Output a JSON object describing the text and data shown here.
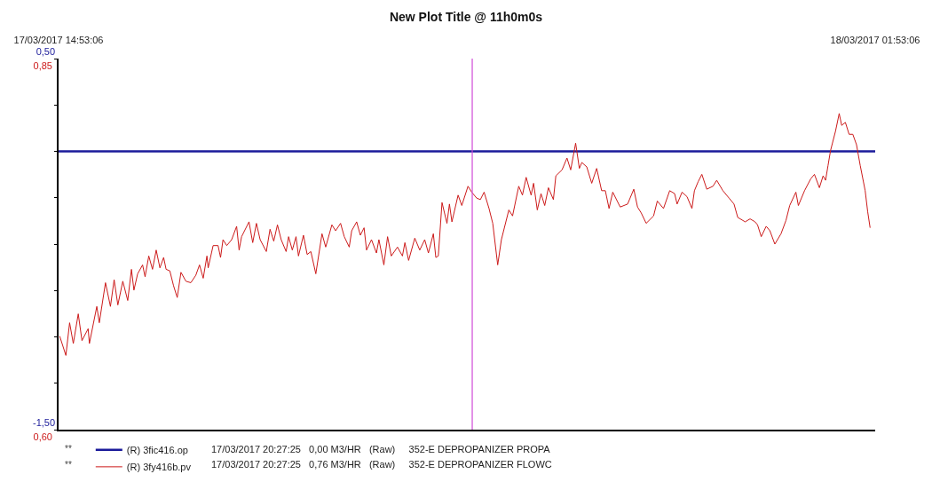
{
  "chart_data": {
    "type": "line",
    "title": "New Plot Title @ 11h0m0s",
    "xlim": [
      "2017-03-17T14:53:06",
      "2017-03-18T01:53:06"
    ],
    "xticks": [
      {
        "value": "2017-03-17T14:53:06",
        "label": "17/03/2017 14:53:06"
      },
      {
        "value": "2017-03-18T01:53:06",
        "label": "18/03/2017 01:53:06"
      }
    ],
    "ylim": [
      -1.5,
      0.5
    ],
    "yticks": [
      {
        "value": -1.5,
        "label": "-1,50"
      },
      {
        "value": -1.25,
        "label": null
      },
      {
        "value": -1.0,
        "label": null
      },
      {
        "value": -0.75,
        "label": null
      },
      {
        "value": -0.5,
        "label": null
      },
      {
        "value": -0.25,
        "label": null
      },
      {
        "value": 0.0,
        "label": null
      },
      {
        "value": 0.25,
        "label": null
      },
      {
        "value": 0.5,
        "label": "0,50"
      }
    ],
    "y2lim": [
      0.6,
      0.85
    ],
    "y2ticks": [
      {
        "value": 0.6,
        "label": "0,60"
      },
      {
        "value": 0.85,
        "label": "0,85"
      }
    ],
    "legend": "bottom left",
    "marker": "none",
    "line_style": "solid",
    "ref_lines": [
      {
        "axis": "x",
        "value": "2017-03-17T20:27:25",
        "color": "#d04ad8"
      }
    ],
    "annotations": [
      "**",
      "17/03/2017 20:27:25   0,00 M3/HR   (Raw)     352-E DEPROPANIZER PROPA",
      "**",
      "17/03/2017 20:27:25   0,76 M3/HR   (Raw)     352-E DEPROPANIZER FLOWC"
    ],
    "series": [
      {
        "name": "(R) 3fic416.op",
        "color": "#1a1a9a",
        "x": [
          "2017-03-17T14:53:06",
          "2017-03-18T01:53:06"
        ],
        "values": [
          0.0,
          0.0
        ]
      },
      {
        "name": "(R) 3fy416b.pv",
        "color": "#cc1a1a",
        "axis": "y2",
        "x": [
          "2017-03-17T14:54",
          "2017-03-17T14:59",
          "2017-03-17T15:02",
          "2017-03-17T15:05",
          "2017-03-17T15:09",
          "2017-03-17T15:12",
          "2017-03-17T15:17",
          "2017-03-17T15:18",
          "2017-03-17T15:24",
          "2017-03-17T15:26",
          "2017-03-17T15:31",
          "2017-03-17T15:35",
          "2017-03-17T15:38",
          "2017-03-17T15:41",
          "2017-03-17T15:45",
          "2017-03-17T15:49",
          "2017-03-17T15:52",
          "2017-03-17T15:54",
          "2017-03-17T15:57",
          "2017-03-17T16:01",
          "2017-03-17T16:03",
          "2017-03-17T16:06",
          "2017-03-17T16:09",
          "2017-03-17T16:12",
          "2017-03-17T16:15",
          "2017-03-17T16:18",
          "2017-03-17T16:20",
          "2017-03-17T16:23",
          "2017-03-17T16:26",
          "2017-03-17T16:29",
          "2017-03-17T16:32",
          "2017-03-17T16:36",
          "2017-03-17T16:40",
          "2017-03-17T16:44",
          "2017-03-17T16:47",
          "2017-03-17T16:50",
          "2017-03-17T16:53",
          "2017-03-17T16:54",
          "2017-03-17T16:58",
          "2017-03-17T17:02",
          "2017-03-17T17:04",
          "2017-03-17T17:06",
          "2017-03-17T17:09",
          "2017-03-17T17:13",
          "2017-03-17T17:17",
          "2017-03-17T17:19",
          "2017-03-17T17:21",
          "2017-03-17T17:27",
          "2017-03-17T17:30",
          "2017-03-17T17:33",
          "2017-03-17T17:36",
          "2017-03-17T17:41",
          "2017-03-17T17:44",
          "2017-03-17T17:47",
          "2017-03-17T17:50",
          "2017-03-17T17:53",
          "2017-03-17T17:57",
          "2017-03-17T17:59",
          "2017-03-17T18:02",
          "2017-03-17T18:05",
          "2017-03-17T18:07",
          "2017-03-17T18:11",
          "2017-03-17T18:14",
          "2017-03-17T18:17",
          "2017-03-17T18:21",
          "2017-03-17T18:26",
          "2017-03-17T18:29",
          "2017-03-17T18:34",
          "2017-03-17T18:37",
          "2017-03-17T18:41",
          "2017-03-17T18:44",
          "2017-03-17T18:48",
          "2017-03-17T18:50",
          "2017-03-17T18:54",
          "2017-03-17T18:57",
          "2017-03-17T19:00",
          "2017-03-17T19:02",
          "2017-03-17T19:06",
          "2017-03-17T19:10",
          "2017-03-17T19:12",
          "2017-03-17T19:16",
          "2017-03-17T19:19",
          "2017-03-17T19:22",
          "2017-03-17T19:27",
          "2017-03-17T19:31",
          "2017-03-17T19:33",
          "2017-03-17T19:36",
          "2017-03-17T19:41",
          "2017-03-17T19:45",
          "2017-03-17T19:49",
          "2017-03-17T19:52",
          "2017-03-17T19:56",
          "2017-03-17T19:58",
          "2017-03-17T20:00",
          "2017-03-17T20:03",
          "2017-03-17T20:07",
          "2017-03-17T20:09",
          "2017-03-17T20:11",
          "2017-03-17T20:16",
          "2017-03-17T20:19",
          "2017-03-17T20:24",
          "2017-03-17T20:27",
          "2017-03-17T20:31",
          "2017-03-17T20:34",
          "2017-03-17T20:37",
          "2017-03-17T20:41",
          "2017-03-17T20:44",
          "2017-03-17T20:48",
          "2017-03-17T20:51",
          "2017-03-17T20:57",
          "2017-03-17T21:00",
          "2017-03-17T21:05",
          "2017-03-17T21:08",
          "2017-03-17T21:11",
          "2017-03-17T21:15",
          "2017-03-17T21:17",
          "2017-03-17T21:20",
          "2017-03-17T21:23",
          "2017-03-17T21:26",
          "2017-03-17T21:29",
          "2017-03-17T21:33",
          "2017-03-17T21:35",
          "2017-03-17T21:40",
          "2017-03-17T21:44",
          "2017-03-17T21:47",
          "2017-03-17T21:51",
          "2017-03-17T21:54",
          "2017-03-17T21:56",
          "2017-03-17T22:00",
          "2017-03-17T22:04",
          "2017-03-17T22:08",
          "2017-03-17T22:12",
          "2017-03-17T22:15",
          "2017-03-17T22:18",
          "2017-03-17T22:21",
          "2017-03-17T22:27",
          "2017-03-17T22:33",
          "2017-03-17T22:38",
          "2017-03-17T22:41",
          "2017-03-17T22:44",
          "2017-03-17T22:48",
          "2017-03-17T22:54",
          "2017-03-17T22:57",
          "2017-03-17T23:02",
          "2017-03-17T23:07",
          "2017-03-17T23:11",
          "2017-03-17T23:13",
          "2017-03-17T23:17",
          "2017-03-17T23:21",
          "2017-03-17T23:25",
          "2017-03-17T23:27",
          "2017-03-17T23:30",
          "2017-03-17T23:33",
          "2017-03-17T23:37",
          "2017-03-17T23:42",
          "2017-03-17T23:45",
          "2017-03-17T23:50",
          "2017-03-17T23:55",
          "2017-03-17T23:59",
          "2017-03-18T00:02",
          "2017-03-18T00:08",
          "2017-03-18T00:12",
          "2017-03-18T00:16",
          "2017-03-18T00:18",
          "2017-03-18T00:21",
          "2017-03-18T00:25",
          "2017-03-18T00:28",
          "2017-03-18T00:32",
          "2017-03-18T00:37",
          "2017-03-18T00:41",
          "2017-03-18T00:44",
          "2017-03-18T00:49",
          "2017-03-18T00:51",
          "2017-03-18T00:56",
          "2017-03-18T01:01",
          "2017-03-18T01:04",
          "2017-03-18T01:08",
          "2017-03-18T01:11",
          "2017-03-18T01:13",
          "2017-03-18T01:15",
          "2017-03-18T01:17",
          "2017-03-18T01:21",
          "2017-03-18T01:24",
          "2017-03-18T01:26",
          "2017-03-18T01:29",
          "2017-03-18T01:32",
          "2017-03-18T01:35",
          "2017-03-18T01:38",
          "2017-03-18T01:41",
          "2017-03-18T01:45",
          "2017-03-18T01:47",
          "2017-03-18T01:49"
        ],
        "values": [
          0.663,
          0.65,
          0.672,
          0.658,
          0.678,
          0.66,
          0.668,
          0.658,
          0.683,
          0.672,
          0.699,
          0.683,
          0.701,
          0.684,
          0.7,
          0.687,
          0.708,
          0.694,
          0.705,
          0.711,
          0.703,
          0.717,
          0.708,
          0.721,
          0.709,
          0.716,
          0.708,
          0.707,
          0.697,
          0.689,
          0.706,
          0.7,
          0.699,
          0.704,
          0.711,
          0.702,
          0.717,
          0.709,
          0.724,
          0.724,
          0.716,
          0.728,
          0.724,
          0.728,
          0.737,
          0.721,
          0.73,
          0.74,
          0.726,
          0.739,
          0.728,
          0.72,
          0.735,
          0.727,
          0.738,
          0.728,
          0.72,
          0.73,
          0.721,
          0.73,
          0.717,
          0.731,
          0.718,
          0.72,
          0.705,
          0.732,
          0.723,
          0.738,
          0.734,
          0.739,
          0.73,
          0.723,
          0.734,
          0.74,
          0.731,
          0.736,
          0.721,
          0.728,
          0.719,
          0.728,
          0.711,
          0.73,
          0.717,
          0.723,
          0.717,
          0.726,
          0.714,
          0.729,
          0.721,
          0.728,
          0.719,
          0.732,
          0.716,
          0.717,
          0.753,
          0.739,
          0.752,
          0.74,
          0.758,
          0.751,
          0.764,
          0.76,
          0.756,
          0.755,
          0.76,
          0.749,
          0.739,
          0.711,
          0.728,
          0.748,
          0.744,
          0.764,
          0.758,
          0.77,
          0.758,
          0.766,
          0.748,
          0.759,
          0.751,
          0.763,
          0.755,
          0.771,
          0.775,
          0.783,
          0.775,
          0.793,
          0.776,
          0.78,
          0.777,
          0.766,
          0.776,
          0.761,
          0.761,
          0.749,
          0.76,
          0.75,
          0.752,
          0.762,
          0.75,
          0.746,
          0.739,
          0.744,
          0.754,
          0.749,
          0.761,
          0.759,
          0.752,
          0.76,
          0.757,
          0.749,
          0.761,
          0.767,
          0.772,
          0.762,
          0.764,
          0.768,
          0.761,
          0.756,
          0.752,
          0.743,
          0.74,
          0.742,
          0.74,
          0.738,
          0.73,
          0.737,
          0.734,
          0.725,
          0.732,
          0.741,
          0.751,
          0.76,
          0.751,
          0.761,
          0.769,
          0.772,
          0.763,
          0.771,
          0.768,
          0.778,
          0.788,
          0.801,
          0.813,
          0.805,
          0.807,
          0.799,
          0.799,
          0.792,
          0.778,
          0.761,
          0.747,
          0.736
        ]
      }
    ]
  }
}
